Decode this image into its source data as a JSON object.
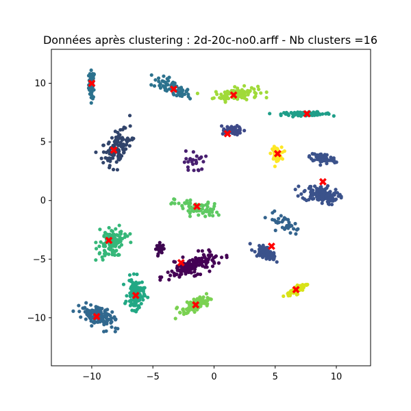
{
  "chart_data": {
    "type": "scatter",
    "title": "Données après clustering : 2d-20c-no0.arff - Nb clusters =16",
    "xlabel": "",
    "ylabel": "",
    "xlim": [
      -13.3,
      12.8
    ],
    "ylim": [
      -14.1,
      12.9
    ],
    "xticks": [
      -10,
      -5,
      0,
      5,
      10
    ],
    "yticks": [
      -10,
      -5,
      0,
      5,
      10
    ],
    "grid": false,
    "legend": "none",
    "point_color_scale": "viridis",
    "centroid_marker": "X",
    "centroid_color": "#ff0000",
    "clusters": [
      {
        "color": "#2c728e",
        "center": [
          -10.0,
          9.9
        ],
        "spread": [
          0.2,
          1.0
        ],
        "angle": 0,
        "n": 60
      },
      {
        "color": "#2c728e",
        "center": [
          -3.5,
          9.6
        ],
        "spread": [
          1.4,
          0.5
        ],
        "angle": -25,
        "n": 70
      },
      {
        "color": "#a0da39",
        "center": [
          1.8,
          9.1
        ],
        "spread": [
          1.5,
          0.45
        ],
        "angle": 5,
        "n": 110
      },
      {
        "color": "#1f9e89",
        "center": [
          7.5,
          7.4
        ],
        "spread": [
          1.7,
          0.12
        ],
        "angle": 0,
        "n": 90
      },
      {
        "color": "#31446b",
        "center": [
          -8.0,
          4.3
        ],
        "spread": [
          0.9,
          1.6
        ],
        "angle": -25,
        "n": 110
      },
      {
        "color": "#3e4a89",
        "center": [
          1.6,
          6.0
        ],
        "spread": [
          0.6,
          0.3
        ],
        "angle": -10,
        "n": 70
      },
      {
        "color": "#fde725",
        "center": [
          5.1,
          4.0
        ],
        "spread": [
          0.35,
          0.45
        ],
        "angle": 0,
        "n": 70
      },
      {
        "color": "#3b528b",
        "center": [
          8.9,
          3.6
        ],
        "spread": [
          0.9,
          0.35
        ],
        "angle": -10,
        "n": 80
      },
      {
        "color": "#3b528b",
        "center": [
          8.7,
          0.5
        ],
        "spread": [
          1.2,
          0.6
        ],
        "angle": -10,
        "n": 130
      },
      {
        "color": "#481f70",
        "center": [
          -1.6,
          3.3
        ],
        "spread": [
          0.7,
          0.8
        ],
        "angle": 0,
        "n": 25
      },
      {
        "color": "#5ec962",
        "center": [
          -1.4,
          -0.7
        ],
        "spread": [
          1.6,
          0.55
        ],
        "angle": -10,
        "n": 70
      },
      {
        "color": "#35b779",
        "center": [
          -8.3,
          -3.5
        ],
        "spread": [
          0.8,
          1.1
        ],
        "angle": -35,
        "n": 120
      },
      {
        "color": "#33638d",
        "center": [
          5.7,
          -2.0
        ],
        "spread": [
          1.2,
          0.5
        ],
        "angle": -25,
        "n": 35
      },
      {
        "color": "#3b528b",
        "center": [
          4.3,
          -4.5
        ],
        "spread": [
          0.7,
          0.35
        ],
        "angle": -30,
        "n": 80
      },
      {
        "color": "#3e0751",
        "center": [
          -4.4,
          -4.1
        ],
        "spread": [
          0.25,
          0.35
        ],
        "angle": 0,
        "n": 40
      },
      {
        "color": "#440154",
        "center": [
          -1.8,
          -5.6
        ],
        "spread": [
          1.8,
          0.6
        ],
        "angle": 20,
        "n": 150
      },
      {
        "color": "#22a884",
        "center": [
          -6.4,
          -8.0
        ],
        "spread": [
          0.55,
          1.1
        ],
        "angle": 0,
        "n": 120
      },
      {
        "color": "#31688e",
        "center": [
          -9.6,
          -9.8
        ],
        "spread": [
          1.2,
          0.7
        ],
        "angle": -30,
        "n": 120
      },
      {
        "color": "#7ad151",
        "center": [
          -1.5,
          -8.9
        ],
        "spread": [
          1.0,
          0.4
        ],
        "angle": 25,
        "n": 90
      },
      {
        "color": "#d8e219",
        "center": [
          6.8,
          -7.6
        ],
        "spread": [
          0.8,
          0.25
        ],
        "angle": 30,
        "n": 60
      }
    ],
    "centroids": [
      [
        -10.0,
        10.0
      ],
      [
        -3.3,
        9.5
      ],
      [
        1.6,
        9.0
      ],
      [
        7.6,
        7.4
      ],
      [
        -8.2,
        4.3
      ],
      [
        1.1,
        5.7
      ],
      [
        5.2,
        4.0
      ],
      [
        8.9,
        1.6
      ],
      [
        -1.4,
        -0.5
      ],
      [
        -8.6,
        -3.4
      ],
      [
        4.7,
        -3.9
      ],
      [
        -2.7,
        -5.3
      ],
      [
        -6.4,
        -8.1
      ],
      [
        -9.6,
        -9.9
      ],
      [
        -1.5,
        -8.9
      ],
      [
        6.7,
        -7.6
      ]
    ]
  }
}
